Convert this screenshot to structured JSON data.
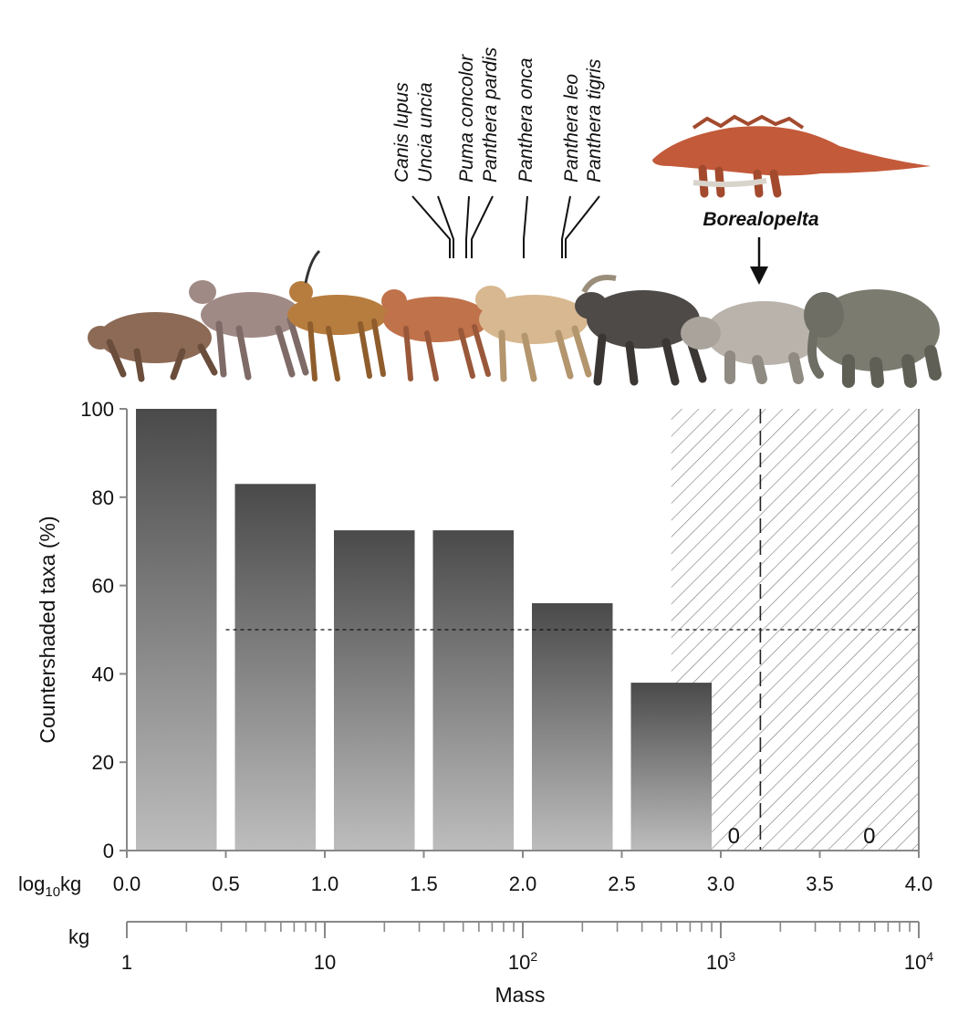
{
  "chart_data": {
    "type": "bar",
    "ylabel": "Countershaded taxa (%)",
    "xlabel": "Mass",
    "x_bins_log10kg": [
      [
        0.0,
        0.5
      ],
      [
        0.5,
        1.0
      ],
      [
        1.0,
        1.5
      ],
      [
        1.5,
        2.0
      ],
      [
        2.0,
        2.5
      ],
      [
        2.5,
        3.0
      ],
      [
        3.0,
        3.5
      ],
      [
        3.5,
        4.0
      ]
    ],
    "values": [
      100,
      83,
      72.5,
      72.5,
      56,
      38,
      0,
      0
    ],
    "zero_labels": [
      "0",
      "0"
    ],
    "ylim": [
      0,
      100
    ],
    "yticks": [
      "0",
      "20",
      "40",
      "60",
      "80",
      "100"
    ],
    "xlim_log10kg": [
      0,
      4
    ],
    "log_axis_label": "log₁₀kg",
    "log_axis_label_parts": {
      "base": "log",
      "sub": "10",
      "unit": "kg"
    },
    "log_ticks": [
      "0.0",
      "0.5",
      "1.0",
      "1.5",
      "2.0",
      "2.5",
      "3.0",
      "3.5",
      "4.0"
    ],
    "kg_axis_label": "kg",
    "kg_ticks": [
      {
        "label": "1",
        "log": 0
      },
      {
        "label": "10",
        "log": 1
      },
      {
        "label": "10",
        "sup": "2",
        "log": 2
      },
      {
        "label": "10",
        "sup": "3",
        "log": 3
      },
      {
        "label": "10",
        "sup": "4",
        "log": 4
      }
    ],
    "reference_line_pct": 50,
    "hatched_region_log10kg": [
      2.75,
      4.0
    ],
    "borealopelta_log10kg": 3.2,
    "grid": false
  },
  "species_labels": [
    {
      "name": "Canis lupus",
      "log10kg": 1.62
    },
    {
      "name": "Uncia uncia",
      "log10kg": 1.62
    },
    {
      "name": "Puma concolor",
      "log10kg": 1.72
    },
    {
      "name": "Panthera pardis",
      "log10kg": 1.72
    },
    {
      "name": "Panthera onca",
      "log10kg": 2.0
    },
    {
      "name": "Panthera leo",
      "log10kg": 2.2
    },
    {
      "name": "Panthera tigris",
      "log10kg": 2.22
    }
  ],
  "highlight_label": "Borealopelta",
  "colors": {
    "bar_top": "#4a4a4a",
    "bar_bottom": "#bdbdbd",
    "axis": "#888888",
    "hatch": "#777777"
  },
  "silhouettes": [
    "mouse-deer",
    "muntjac",
    "gazelle",
    "pronghorn",
    "onager",
    "moose",
    "rhinoceros",
    "elephant",
    "borealopelta"
  ]
}
